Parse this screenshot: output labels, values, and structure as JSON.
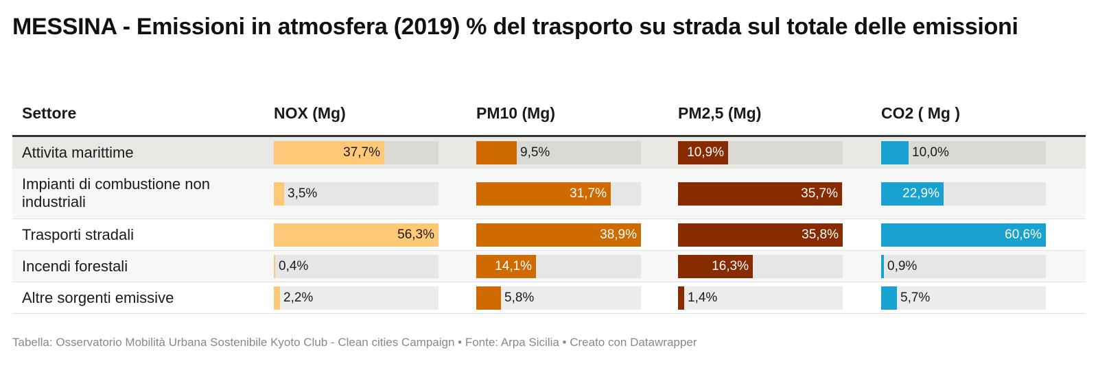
{
  "title": "MESSINA - Emissioni in atmosfera (2019) % del trasporto su strada sul totale delle emissioni",
  "footer": "Tabella: Osservatorio Mobilità Urbana Sostenibile Kyoto Club - Clean cities Campaign • Fonte: Arpa Sicilia • Creato con Datawrapper",
  "chart_data": {
    "type": "table",
    "title": "MESSINA - Emissioni in atmosfera (2019) % del trasporto su strada sul totale delle emissioni",
    "columns": [
      "Settore",
      "NOX (Mg)",
      "PM10 (Mg)",
      "PM2,5 (Mg)",
      "CO2 ( Mg )"
    ],
    "series": [
      {
        "name": "NOX (Mg)",
        "color": "#fec877",
        "label_dark": true,
        "values": [
          37.7,
          3.5,
          56.3,
          0.4,
          2.2
        ],
        "labels": [
          "37,7%",
          "3,5%",
          "56,3%",
          "0,4%",
          "2,2%"
        ]
      },
      {
        "name": "PM10 (Mg)",
        "color": "#cf6a00",
        "label_dark": false,
        "values": [
          9.5,
          31.7,
          38.9,
          14.1,
          5.8
        ],
        "labels": [
          "9,5%",
          "31,7%",
          "38,9%",
          "14,1%",
          "5,8%"
        ]
      },
      {
        "name": "PM2,5 (Mg)",
        "color": "#862c00",
        "label_dark": false,
        "values": [
          10.9,
          35.7,
          35.8,
          16.3,
          1.4
        ],
        "labels": [
          "10,9%",
          "35,7%",
          "35,8%",
          "16,3%",
          "1,4%"
        ]
      },
      {
        "name": "CO2 ( Mg )",
        "color": "#19a2cf",
        "label_dark": false,
        "values": [
          10.0,
          22.9,
          60.6,
          0.9,
          5.7
        ],
        "labels": [
          "10,0%",
          "22,9%",
          "60,6%",
          "0,9%",
          "5,7%"
        ]
      }
    ],
    "rows": [
      {
        "sector": "Attivita marittime",
        "highlight": true
      },
      {
        "sector": "Impianti di combustione non industriali",
        "highlight": false
      },
      {
        "sector": "Trasporti stradali",
        "highlight": false
      },
      {
        "sector": "Incendi forestali",
        "highlight": false
      },
      {
        "sector": "Altre sorgenti emissive",
        "highlight": false
      }
    ]
  }
}
